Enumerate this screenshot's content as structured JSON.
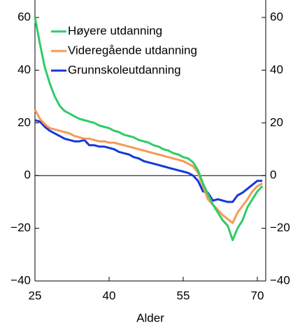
{
  "chart_data": {
    "type": "line",
    "x_label": "Alder",
    "x": [
      25,
      26,
      27,
      28,
      29,
      30,
      31,
      32,
      33,
      34,
      35,
      36,
      37,
      38,
      39,
      40,
      41,
      42,
      43,
      44,
      45,
      46,
      47,
      48,
      49,
      50,
      51,
      52,
      53,
      54,
      55,
      56,
      57,
      58,
      59,
      60,
      61,
      62,
      63,
      64,
      65,
      66,
      67,
      68,
      69,
      70,
      71
    ],
    "series": [
      {
        "name": "Høyere utdanning",
        "color": "#2fcc66",
        "values": [
          60,
          50,
          41,
          35,
          30,
          26.5,
          24.5,
          23.5,
          22.5,
          21.5,
          21,
          20.5,
          20,
          19,
          18.5,
          18,
          17,
          16.5,
          15.5,
          15,
          14.5,
          13.5,
          13,
          12.5,
          11.5,
          11,
          10,
          9.5,
          8.5,
          8,
          7,
          6.5,
          5,
          2,
          -3,
          -7,
          -11,
          -14,
          -17,
          -19,
          -24.5,
          -20,
          -17,
          -12,
          -9,
          -6,
          -4
        ]
      },
      {
        "name": "Videregående utdanning",
        "color": "#f59a55",
        "values": [
          25,
          21.5,
          19.5,
          18,
          17.5,
          17,
          16.5,
          16,
          15,
          14.5,
          14,
          14,
          13.5,
          13,
          13,
          12.5,
          12.5,
          12,
          11.5,
          11,
          10.5,
          10,
          9.5,
          9,
          8.5,
          8,
          7.5,
          7,
          6.5,
          6,
          5.5,
          4.5,
          3.5,
          1,
          -4,
          -9,
          -11,
          -13,
          -15,
          -16.5,
          -18,
          -14,
          -11.5,
          -9,
          -6,
          -4,
          -3
        ]
      },
      {
        "name": "Grunnskoleutdanning",
        "color": "#1538d8",
        "values": [
          21,
          20.5,
          18.5,
          17,
          16,
          15,
          14,
          13.5,
          13,
          13,
          13.5,
          11.5,
          11.5,
          11,
          11,
          10.5,
          10,
          9,
          8.5,
          8,
          7,
          6.5,
          5.5,
          5,
          4.5,
          4,
          3.5,
          3,
          2.5,
          2,
          1.5,
          1,
          0,
          -2,
          -6,
          -6.5,
          -9.5,
          -9,
          -9.5,
          -10,
          -10,
          -7.5,
          -6.5,
          -5,
          -3.5,
          -2,
          -2
        ]
      }
    ],
    "xlim": [
      25,
      71.7
    ],
    "xticks": [
      25,
      40,
      55,
      70
    ],
    "ylim": [
      -40,
      60
    ],
    "yticks": [
      {
        "value": -40,
        "label": "−40"
      },
      {
        "value": -20,
        "label": "−20"
      },
      0,
      20,
      40,
      60
    ],
    "y2lim": [
      -40,
      60
    ],
    "y2ticks": [
      {
        "value": -40,
        "label": "−40"
      },
      {
        "value": -20,
        "label": "−20"
      },
      0,
      20,
      40,
      60
    ],
    "legend": "upper left"
  }
}
